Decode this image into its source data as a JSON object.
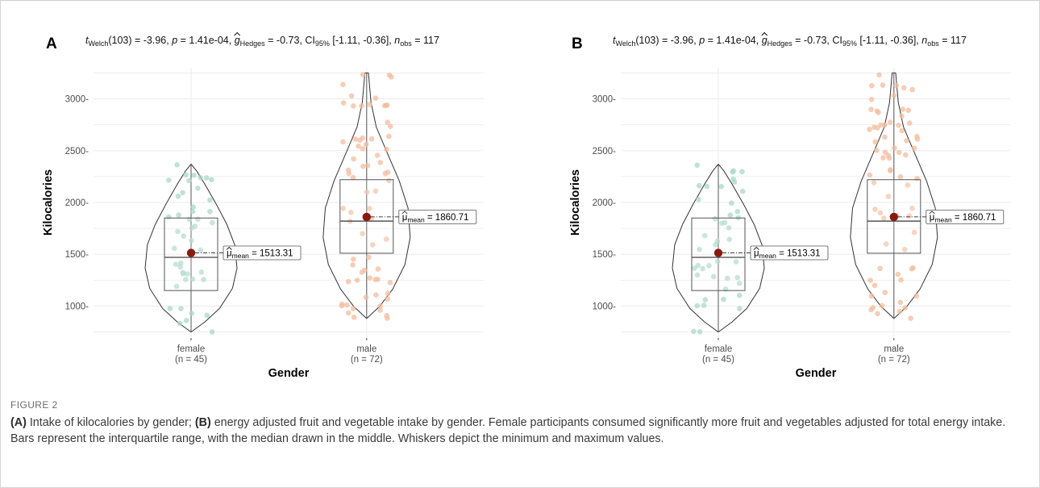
{
  "figure": {
    "label": "FIGURE 2",
    "caption": {
      "a_label": "(A)",
      "a_text": " Intake of kilocalories by gender; ",
      "b_label": "(B)",
      "b_text": " energy adjusted fruit and vegetable intake by gender. Female participants consumed significantly more fruit and vegetables adjusted for total energy intake. Bars represent the interquartile range, with the median drawn in the middle. Whiskers depict the minimum and maximum values."
    }
  },
  "colors": {
    "female": "#a9d8c8",
    "male": "#f3bc9e",
    "mean_point": "#8b1a0e",
    "grid": "#ebebeb",
    "box": "#555555",
    "violin": "#333333"
  },
  "chart_data": [
    {
      "panel": "A",
      "type": "violin-box-scatter",
      "subtitle": {
        "t_sub": "Welch",
        "t_df": "(103) = -3.96, ",
        "p_val": " = 1.41e-04, ",
        "g_sub": "Hedges",
        "g_val": " = -0.73, CI",
        "ci_sub": "95%",
        "ci_val": " [-1.11, -0.36], ",
        "n_sub": "obs",
        "n_val": " = 117"
      },
      "xlabel": "Gender",
      "ylabel": "Kilocalories",
      "yticks": [
        1000,
        1500,
        2000,
        2500,
        3000
      ],
      "ylim": [
        700,
        3300
      ],
      "grid": true,
      "groups": [
        {
          "name": "female",
          "n_label": "(n = 45)",
          "color": "#a9d8c8",
          "min": 750,
          "q1": 1150,
          "median": 1470,
          "q3": 1850,
          "max": 2370,
          "mean": 1513.31,
          "mean_label": "= 1513.31"
        },
        {
          "name": "male",
          "n_label": "(n = 72)",
          "color": "#f3bc9e",
          "min": 880,
          "q1": 1510,
          "median": 1820,
          "q3": 2220,
          "max": 3250,
          "mean": 1860.71,
          "mean_label": "= 1860.71"
        }
      ]
    },
    {
      "panel": "B",
      "type": "violin-box-scatter",
      "subtitle": {
        "t_sub": "Welch",
        "t_df": "(103) = -3.96, ",
        "p_val": " = 1.41e-04, ",
        "g_sub": "Hedges",
        "g_val": " = -0.73, CI",
        "ci_sub": "95%",
        "ci_val": " [-1.11, -0.36], ",
        "n_sub": "obs",
        "n_val": " = 117"
      },
      "xlabel": "Gender",
      "ylabel": "Kilocalories",
      "yticks": [
        1000,
        1500,
        2000,
        2500,
        3000
      ],
      "ylim": [
        700,
        3300
      ],
      "grid": true,
      "groups": [
        {
          "name": "female",
          "n_label": "(n = 45)",
          "color": "#a9d8c8",
          "min": 750,
          "q1": 1150,
          "median": 1470,
          "q3": 1850,
          "max": 2370,
          "mean": 1513.31,
          "mean_label": "= 1513.31"
        },
        {
          "name": "male",
          "n_label": "(n = 72)",
          "color": "#f3bc9e",
          "min": 880,
          "q1": 1510,
          "median": 1820,
          "q3": 2220,
          "max": 3250,
          "mean": 1860.71,
          "mean_label": "= 1860.71"
        }
      ]
    }
  ]
}
